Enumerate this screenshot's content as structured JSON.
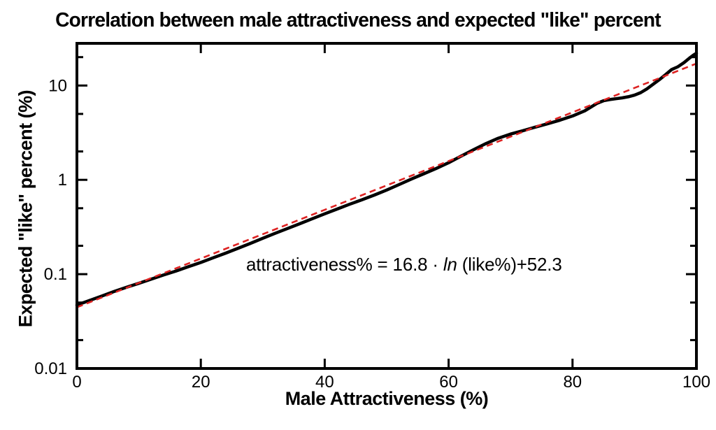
{
  "title": "Correlation between male attractiveness and expected \"like\" percent",
  "annotation": {
    "prefix": "attractiveness% = 16.8 · ",
    "ln": "ln",
    "suffix": " (like%)+52.3"
  },
  "colors": {
    "curve": "#000000",
    "fit": "#dd2222",
    "background": "#ffffff"
  },
  "chart_data": {
    "type": "line",
    "title": "Correlation between male attractiveness and expected \"like\" percent",
    "xlabel": "Male Attractiveness (%)",
    "ylabel": "Expected \"like\" percent (%)",
    "xlim": [
      0,
      100
    ],
    "ylim": [
      0.01,
      28
    ],
    "y_scale": "log",
    "grid": false,
    "legend": "none",
    "x_ticks": [
      0,
      20,
      40,
      60,
      80,
      100
    ],
    "x_tick_labels": [
      "0",
      "20",
      "40",
      "60",
      "80",
      "100"
    ],
    "y_major_ticks": [
      0.01,
      0.1,
      1,
      10
    ],
    "y_tick_labels": [
      "0.01",
      "0.1",
      "1",
      "10"
    ],
    "y_minor_ticks": [
      0.02,
      0.05,
      0.2,
      0.5,
      2,
      5,
      20
    ],
    "annotation_text": "attractiveness% = 16.8 · ln (like%)+52.3",
    "fit_equation": {
      "slope": 16.8,
      "intercept": 52.3,
      "form": "attractiveness% = 16.8*ln(like%)+52.3"
    },
    "series": [
      {
        "name": "observed",
        "color": "#000000",
        "style": "solid",
        "x": [
          0,
          2,
          4,
          6,
          8,
          10,
          12,
          14,
          16,
          18,
          20,
          22,
          24,
          26,
          28,
          30,
          32,
          34,
          36,
          38,
          40,
          42,
          44,
          46,
          48,
          50,
          52,
          54,
          56,
          58,
          60,
          62,
          64,
          66,
          68,
          70,
          72,
          74,
          76,
          78,
          80,
          82,
          84,
          85,
          86,
          87,
          88,
          89,
          90,
          91,
          92,
          93,
          94,
          95,
          96,
          97,
          98,
          99,
          99.5,
          100
        ],
        "y": [
          0.047,
          0.0525,
          0.0585,
          0.0655,
          0.0725,
          0.08,
          0.0885,
          0.098,
          0.108,
          0.12,
          0.133,
          0.149,
          0.167,
          0.188,
          0.212,
          0.24,
          0.271,
          0.305,
          0.343,
          0.387,
          0.436,
          0.49,
          0.55,
          0.615,
          0.69,
          0.78,
          0.89,
          1.02,
          1.16,
          1.32,
          1.52,
          1.78,
          2.08,
          2.42,
          2.76,
          3.06,
          3.32,
          3.62,
          3.94,
          4.3,
          4.75,
          5.4,
          6.5,
          6.9,
          7.1,
          7.25,
          7.4,
          7.6,
          7.9,
          8.4,
          9.2,
          10.3,
          11.5,
          13.0,
          14.8,
          15.8,
          17.5,
          19.8,
          21.0,
          22.0
        ]
      },
      {
        "name": "fit",
        "color": "#dd2222",
        "style": "dashed",
        "x": [
          0,
          100
        ],
        "y": [
          0.0445,
          17.1
        ]
      }
    ]
  }
}
